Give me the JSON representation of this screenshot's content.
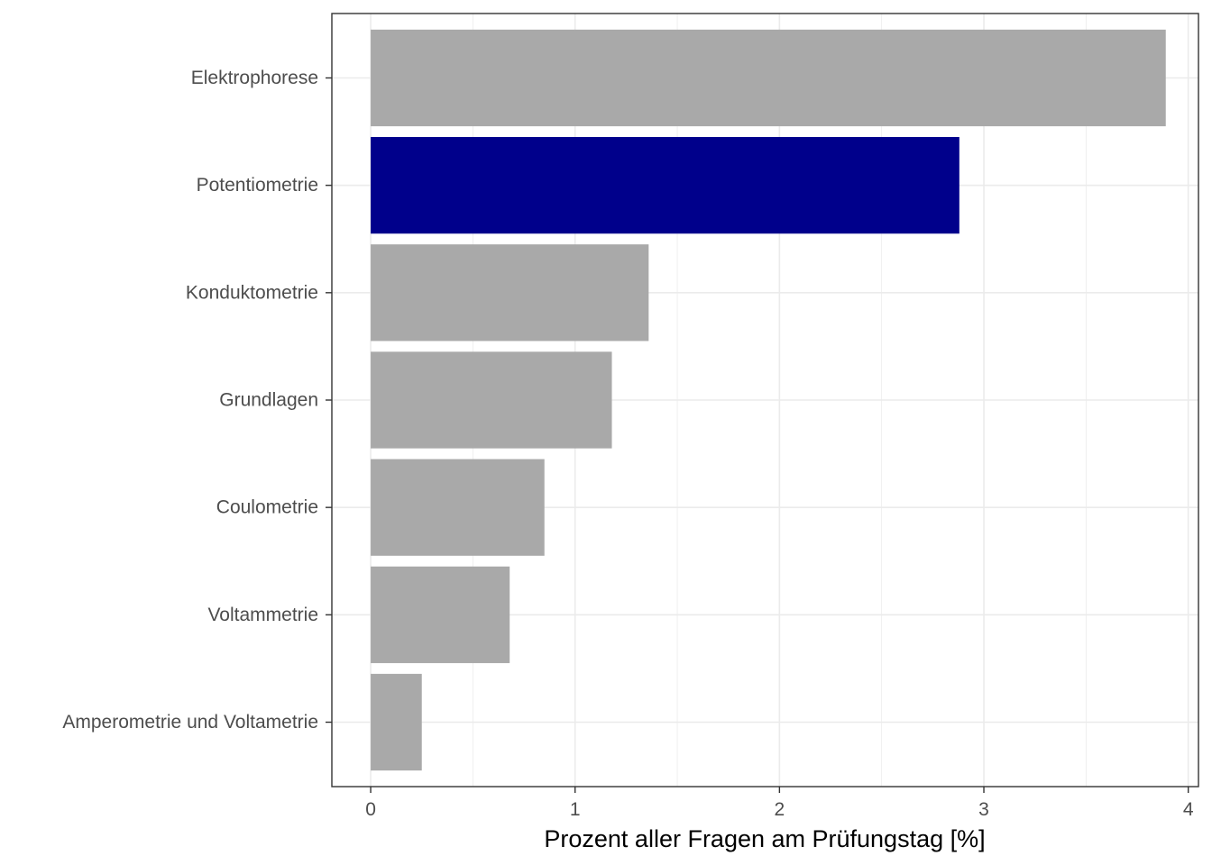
{
  "chart_data": {
    "type": "bar",
    "orientation": "horizontal",
    "categories": [
      "Elektrophorese",
      "Potentiometrie",
      "Konduktometrie",
      "Grundlagen",
      "Coulometrie",
      "Voltammetrie",
      "Amperometrie und Voltametrie"
    ],
    "values": [
      3.89,
      2.88,
      1.36,
      1.18,
      0.85,
      0.68,
      0.25
    ],
    "highlight": "Potentiometrie",
    "xlabel": "Prozent aller Fragen am Prüfungstag [%]",
    "ylabel": "",
    "title": "",
    "xlim": [
      -0.19,
      4.05
    ],
    "xticks": [
      0,
      1,
      2,
      3,
      4
    ],
    "grid": true,
    "legend": "none"
  },
  "colors": {
    "bar": "#A9A9A9",
    "highlight": "#00008B",
    "grid": "#EBEBEB",
    "axis": "#333333",
    "tick_text": "#4D4D4D",
    "title_text": "#000000"
  }
}
